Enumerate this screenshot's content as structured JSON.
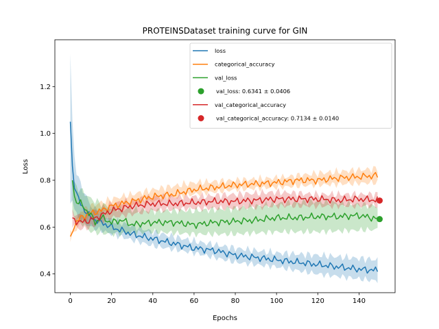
{
  "chart_data": {
    "type": "line",
    "title": "PROTEINSDataset training curve for GIN",
    "xlabel": "Epochs",
    "ylabel": "Loss",
    "xlim": [
      -7.5,
      157.5
    ],
    "ylim": [
      0.32,
      1.4
    ],
    "xticks": [
      0,
      20,
      40,
      60,
      80,
      100,
      120,
      140
    ],
    "yticks": [
      0.4,
      0.6,
      0.8,
      1.0,
      1.2
    ],
    "ytick_labels": [
      "0.4",
      "0.6",
      "0.8",
      "1.0",
      "1.2"
    ],
    "grid": false,
    "legend_position": "top-right",
    "epochs": 150,
    "series": [
      {
        "name": "loss",
        "color": "#1f77b4",
        "points": [
          [
            0,
            1.05
          ],
          [
            1,
            0.86
          ],
          [
            2,
            0.78
          ],
          [
            3,
            0.74
          ],
          [
            5,
            0.7
          ],
          [
            8,
            0.66
          ],
          [
            10,
            0.64
          ],
          [
            15,
            0.62
          ],
          [
            20,
            0.6
          ],
          [
            30,
            0.57
          ],
          [
            40,
            0.55
          ],
          [
            50,
            0.53
          ],
          [
            60,
            0.51
          ],
          [
            70,
            0.5
          ],
          [
            80,
            0.48
          ],
          [
            90,
            0.47
          ],
          [
            100,
            0.46
          ],
          [
            110,
            0.45
          ],
          [
            120,
            0.44
          ],
          [
            130,
            0.43
          ],
          [
            140,
            0.42
          ],
          [
            149,
            0.415
          ]
        ],
        "band": [
          [
            0,
            0.7,
            1.34
          ],
          [
            1,
            0.72,
            1.05
          ],
          [
            2,
            0.68,
            0.9
          ],
          [
            3,
            0.65,
            0.84
          ],
          [
            5,
            0.63,
            0.78
          ],
          [
            10,
            0.6,
            0.69
          ],
          [
            20,
            0.57,
            0.63
          ],
          [
            40,
            0.52,
            0.58
          ],
          [
            60,
            0.49,
            0.54
          ],
          [
            80,
            0.45,
            0.51
          ],
          [
            100,
            0.43,
            0.49
          ],
          [
            120,
            0.4,
            0.48
          ],
          [
            149,
            0.37,
            0.46
          ]
        ]
      },
      {
        "name": "categorical_accuracy",
        "color": "#ff7f0e",
        "points": [
          [
            0,
            0.56
          ],
          [
            2,
            0.61
          ],
          [
            5,
            0.64
          ],
          [
            10,
            0.66
          ],
          [
            15,
            0.67
          ],
          [
            20,
            0.69
          ],
          [
            30,
            0.71
          ],
          [
            40,
            0.73
          ],
          [
            50,
            0.74
          ],
          [
            60,
            0.76
          ],
          [
            70,
            0.77
          ],
          [
            80,
            0.78
          ],
          [
            90,
            0.785
          ],
          [
            100,
            0.79
          ],
          [
            110,
            0.8
          ],
          [
            120,
            0.8
          ],
          [
            130,
            0.81
          ],
          [
            140,
            0.815
          ],
          [
            149,
            0.82
          ]
        ],
        "band": [
          [
            0,
            0.55,
            0.57
          ],
          [
            5,
            0.62,
            0.67
          ],
          [
            10,
            0.64,
            0.69
          ],
          [
            20,
            0.67,
            0.72
          ],
          [
            40,
            0.71,
            0.76
          ],
          [
            60,
            0.74,
            0.79
          ],
          [
            80,
            0.76,
            0.8
          ],
          [
            100,
            0.77,
            0.81
          ],
          [
            120,
            0.78,
            0.83
          ],
          [
            149,
            0.79,
            0.85
          ]
        ]
      },
      {
        "name": "val_loss",
        "color": "#2ca02c",
        "points": [
          [
            1,
            0.8
          ],
          [
            2,
            0.73
          ],
          [
            3,
            0.71
          ],
          [
            5,
            0.7
          ],
          [
            8,
            0.67
          ],
          [
            10,
            0.65
          ],
          [
            12,
            0.62
          ],
          [
            15,
            0.64
          ],
          [
            20,
            0.62
          ],
          [
            25,
            0.63
          ],
          [
            30,
            0.61
          ],
          [
            40,
            0.62
          ],
          [
            50,
            0.62
          ],
          [
            60,
            0.61
          ],
          [
            70,
            0.62
          ],
          [
            80,
            0.625
          ],
          [
            90,
            0.63
          ],
          [
            100,
            0.64
          ],
          [
            110,
            0.64
          ],
          [
            120,
            0.645
          ],
          [
            130,
            0.645
          ],
          [
            140,
            0.65
          ],
          [
            149,
            0.635
          ]
        ],
        "band": [
          [
            1,
            0.66,
            0.8
          ],
          [
            3,
            0.63,
            0.77
          ],
          [
            5,
            0.62,
            0.76
          ],
          [
            10,
            0.58,
            0.72
          ],
          [
            20,
            0.57,
            0.68
          ],
          [
            40,
            0.58,
            0.67
          ],
          [
            60,
            0.57,
            0.67
          ],
          [
            80,
            0.57,
            0.68
          ],
          [
            100,
            0.58,
            0.7
          ],
          [
            120,
            0.58,
            0.71
          ],
          [
            149,
            0.59,
            0.69
          ]
        ]
      },
      {
        "name": "val_categorical_accuracy",
        "color": "#d62728",
        "points": [
          [
            1,
            0.64
          ],
          [
            2,
            0.63
          ],
          [
            5,
            0.62
          ],
          [
            10,
            0.63
          ],
          [
            15,
            0.65
          ],
          [
            20,
            0.67
          ],
          [
            30,
            0.69
          ],
          [
            40,
            0.7
          ],
          [
            50,
            0.7
          ],
          [
            60,
            0.705
          ],
          [
            70,
            0.71
          ],
          [
            80,
            0.71
          ],
          [
            90,
            0.715
          ],
          [
            100,
            0.72
          ],
          [
            110,
            0.72
          ],
          [
            120,
            0.72
          ],
          [
            130,
            0.715
          ],
          [
            140,
            0.72
          ],
          [
            149,
            0.715
          ]
        ],
        "band": [
          [
            1,
            0.61,
            0.66
          ],
          [
            5,
            0.59,
            0.65
          ],
          [
            10,
            0.6,
            0.66
          ],
          [
            20,
            0.64,
            0.7
          ],
          [
            40,
            0.67,
            0.73
          ],
          [
            60,
            0.68,
            0.73
          ],
          [
            80,
            0.68,
            0.74
          ],
          [
            100,
            0.69,
            0.75
          ],
          [
            120,
            0.69,
            0.74
          ],
          [
            149,
            0.69,
            0.74
          ]
        ]
      }
    ],
    "final_markers": [
      {
        "name": "val_loss: 0.6341 ± 0.0406",
        "x": 150,
        "y": 0.6341,
        "color": "#2ca02c"
      },
      {
        "name": "val_categorical_accuracy: 0.7134 ± 0.0140",
        "x": 150,
        "y": 0.7134,
        "color": "#d62728"
      }
    ],
    "legend": [
      {
        "label": "loss",
        "kind": "line",
        "color": "#1f77b4"
      },
      {
        "label": "categorical_accuracy",
        "kind": "line",
        "color": "#ff7f0e"
      },
      {
        "label": "val_loss",
        "kind": "line",
        "color": "#2ca02c"
      },
      {
        "label": "val_loss: 0.6341 ± 0.0406",
        "kind": "marker",
        "color": "#2ca02c"
      },
      {
        "label": "val_categorical_accuracy",
        "kind": "line",
        "color": "#d62728"
      },
      {
        "label": "val_categorical_accuracy: 0.7134 ± 0.0140",
        "kind": "marker",
        "color": "#d62728"
      }
    ]
  }
}
